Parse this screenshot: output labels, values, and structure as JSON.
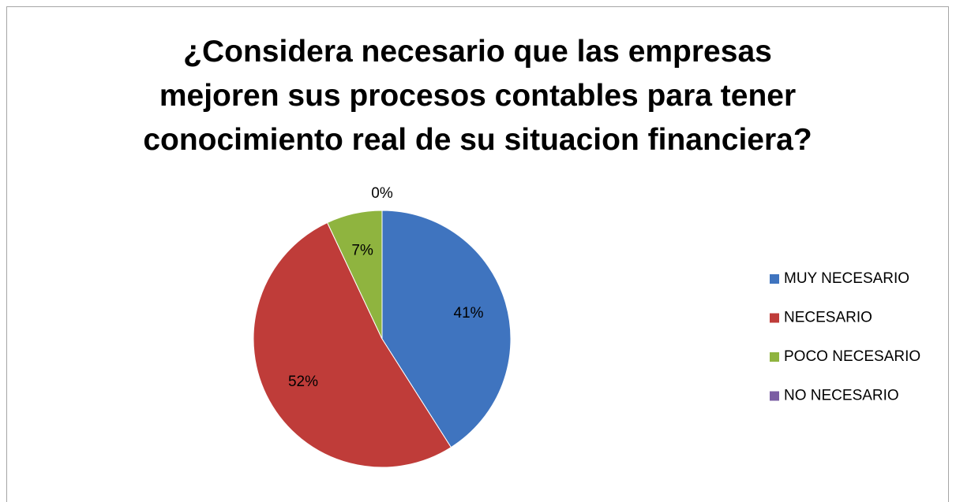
{
  "chart_data": {
    "type": "pie",
    "title": "¿Considera necesario que las empresas mejoren sus procesos contables para tener conocimiento real de su situacion financiera?",
    "categories": [
      "MUY NECESARIO",
      "NECESARIO",
      "POCO NECESARIO",
      "NO NECESARIO"
    ],
    "values": [
      41,
      52,
      7,
      0
    ],
    "value_labels": [
      "41%",
      "52%",
      "7%",
      "0%"
    ],
    "colors": [
      "#3f74bf",
      "#bf3c39",
      "#8fb43f",
      "#7a5ca3"
    ],
    "legend": "right"
  }
}
